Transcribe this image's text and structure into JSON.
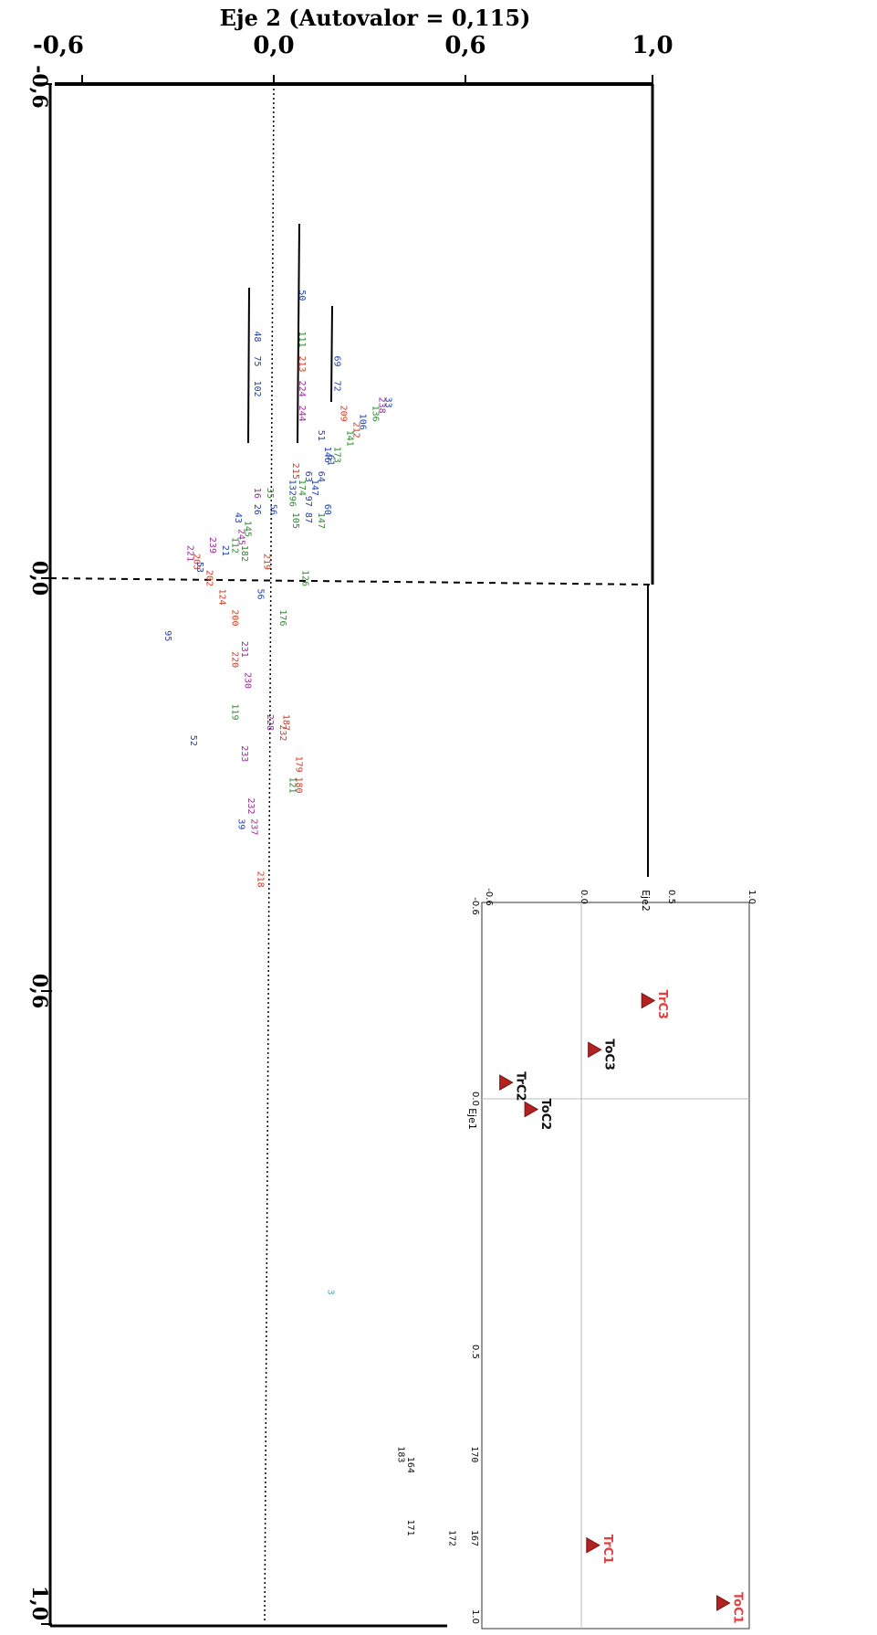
{
  "colors": {
    "blue": "#1f3fa8",
    "green": "#2e8b2e",
    "red": "#d23a23",
    "purple": "#9a2a9a",
    "black": "#111111",
    "cyan": "#2bb3c8",
    "inset_red": "#e04040"
  },
  "chart_data": [
    {
      "type": "scatter",
      "title": "Eje 2 (Autovalor = 0,115)",
      "xlabel": "",
      "ylabel": "",
      "x_ticks": [
        "-0,6",
        "0,0",
        "0,6",
        "1,0"
      ],
      "y_ticks": [
        "-0,6",
        "0,0",
        "0,6",
        "1,0"
      ],
      "xlim": [
        -0.6,
        1.0
      ],
      "ylim": [
        -0.6,
        1.0
      ],
      "grid": false,
      "points": [
        {
          "label": "50",
          "x": 0.08,
          "y": -0.35,
          "color": "blue"
        },
        {
          "label": "111",
          "x": 0.08,
          "y": -0.3,
          "color": "green"
        },
        {
          "label": "213",
          "x": 0.08,
          "y": -0.27,
          "color": "red"
        },
        {
          "label": "224",
          "x": 0.08,
          "y": -0.24,
          "color": "purple"
        },
        {
          "label": "244",
          "x": 0.08,
          "y": -0.21,
          "color": "purple"
        },
        {
          "label": "48",
          "x": -0.06,
          "y": -0.3,
          "color": "blue"
        },
        {
          "label": "75",
          "x": -0.06,
          "y": -0.27,
          "color": "blue"
        },
        {
          "label": "102",
          "x": -0.06,
          "y": -0.24,
          "color": "blue"
        },
        {
          "label": "69",
          "x": 0.19,
          "y": -0.27,
          "color": "blue"
        },
        {
          "label": "72",
          "x": 0.19,
          "y": -0.24,
          "color": "blue"
        },
        {
          "label": "33",
          "x": 0.35,
          "y": -0.22,
          "color": "blue"
        },
        {
          "label": "238",
          "x": 0.33,
          "y": -0.22,
          "color": "purple"
        },
        {
          "label": "136",
          "x": 0.31,
          "y": -0.21,
          "color": "green"
        },
        {
          "label": "106",
          "x": 0.27,
          "y": -0.2,
          "color": "blue"
        },
        {
          "label": "209",
          "x": 0.21,
          "y": -0.21,
          "color": "red"
        },
        {
          "label": "212",
          "x": 0.25,
          "y": -0.19,
          "color": "red"
        },
        {
          "label": "141",
          "x": 0.23,
          "y": -0.18,
          "color": "green"
        },
        {
          "label": "51",
          "x": 0.14,
          "y": -0.18,
          "color": "blue"
        },
        {
          "label": "146",
          "x": 0.16,
          "y": -0.16,
          "color": "blue"
        },
        {
          "label": "173",
          "x": 0.19,
          "y": -0.16,
          "color": "green"
        },
        {
          "label": "61",
          "x": 0.17,
          "y": -0.15,
          "color": "blue"
        },
        {
          "label": "64",
          "x": 0.14,
          "y": -0.13,
          "color": "blue"
        },
        {
          "label": "147",
          "x": 0.12,
          "y": -0.12,
          "color": "blue"
        },
        {
          "label": "215",
          "x": 0.06,
          "y": -0.14,
          "color": "red"
        },
        {
          "label": "174",
          "x": 0.08,
          "y": -0.12,
          "color": "green"
        },
        {
          "label": "63",
          "x": 0.1,
          "y": -0.13,
          "color": "blue"
        },
        {
          "label": "132",
          "x": 0.05,
          "y": -0.12,
          "color": "blue"
        },
        {
          "label": "97",
          "x": 0.1,
          "y": -0.1,
          "color": "blue"
        },
        {
          "label": "96",
          "x": 0.05,
          "y": -0.1,
          "color": "green"
        },
        {
          "label": "87",
          "x": 0.1,
          "y": -0.08,
          "color": "blue"
        },
        {
          "label": "105",
          "x": 0.06,
          "y": -0.08,
          "color": "green"
        },
        {
          "label": "60",
          "x": 0.16,
          "y": -0.09,
          "color": "blue"
        },
        {
          "label": "147",
          "x": 0.14,
          "y": -0.08,
          "color": "green"
        },
        {
          "label": "35",
          "x": -0.02,
          "y": -0.11,
          "color": "green"
        },
        {
          "label": "56",
          "x": -0.01,
          "y": -0.09,
          "color": "blue"
        },
        {
          "label": "16",
          "x": -0.06,
          "y": -0.11,
          "color": "purple"
        },
        {
          "label": "26",
          "x": -0.06,
          "y": -0.09,
          "color": "blue"
        },
        {
          "label": "43",
          "x": -0.12,
          "y": -0.08,
          "color": "blue"
        },
        {
          "label": "145",
          "x": -0.09,
          "y": -0.07,
          "color": "green"
        },
        {
          "label": "245",
          "x": -0.11,
          "y": -0.06,
          "color": "purple"
        },
        {
          "label": "112",
          "x": -0.13,
          "y": -0.05,
          "color": "green"
        },
        {
          "label": "182",
          "x": -0.1,
          "y": -0.04,
          "color": "green"
        },
        {
          "label": "239",
          "x": -0.2,
          "y": -0.05,
          "color": "purple"
        },
        {
          "label": "21",
          "x": -0.16,
          "y": -0.04,
          "color": "blue"
        },
        {
          "label": "221",
          "x": -0.27,
          "y": -0.04,
          "color": "purple"
        },
        {
          "label": "203",
          "x": -0.25,
          "y": -0.03,
          "color": "red"
        },
        {
          "label": "53",
          "x": -0.24,
          "y": -0.02,
          "color": "blue"
        },
        {
          "label": "202",
          "x": -0.21,
          "y": -0.01,
          "color": "red"
        },
        {
          "label": "219",
          "x": -0.03,
          "y": -0.03,
          "color": "red"
        },
        {
          "label": "126",
          "x": 0.09,
          "y": -0.01,
          "color": "green"
        },
        {
          "label": "56",
          "x": -0.05,
          "y": 0.01,
          "color": "blue"
        },
        {
          "label": "124",
          "x": -0.17,
          "y": 0.01,
          "color": "red"
        },
        {
          "label": "200",
          "x": -0.13,
          "y": 0.03,
          "color": "red"
        },
        {
          "label": "176",
          "x": 0.02,
          "y": 0.03,
          "color": "green"
        },
        {
          "label": "95",
          "x": -0.34,
          "y": 0.05,
          "color": "blue"
        },
        {
          "label": "231",
          "x": -0.1,
          "y": 0.06,
          "color": "purple"
        },
        {
          "label": "220",
          "x": -0.13,
          "y": 0.07,
          "color": "red"
        },
        {
          "label": "230",
          "x": -0.09,
          "y": 0.09,
          "color": "purple"
        },
        {
          "label": "119",
          "x": -0.13,
          "y": 0.12,
          "color": "green"
        },
        {
          "label": "52",
          "x": -0.26,
          "y": 0.15,
          "color": "blue"
        },
        {
          "label": "228",
          "x": -0.02,
          "y": 0.13,
          "color": "purple"
        },
        {
          "label": "187",
          "x": 0.03,
          "y": 0.13,
          "color": "red"
        },
        {
          "label": "232",
          "x": 0.02,
          "y": 0.14,
          "color": "red"
        },
        {
          "label": "233",
          "x": -0.1,
          "y": 0.16,
          "color": "purple"
        },
        {
          "label": "179",
          "x": 0.07,
          "y": 0.17,
          "color": "red"
        },
        {
          "label": "180",
          "x": 0.07,
          "y": 0.19,
          "color": "red"
        },
        {
          "label": "121",
          "x": 0.05,
          "y": 0.19,
          "color": "green"
        },
        {
          "label": "232",
          "x": -0.08,
          "y": 0.21,
          "color": "purple"
        },
        {
          "label": "237",
          "x": -0.07,
          "y": 0.23,
          "color": "purple"
        },
        {
          "label": "39",
          "x": -0.11,
          "y": 0.23,
          "color": "blue"
        },
        {
          "label": "218",
          "x": -0.05,
          "y": 0.28,
          "color": "red"
        },
        {
          "label": "3",
          "x": 0.17,
          "y": 0.68,
          "color": "cyan"
        },
        {
          "label": "170",
          "x": 0.62,
          "y": 0.83,
          "color": "black"
        },
        {
          "label": "183",
          "x": 0.39,
          "y": 0.83,
          "color": "black"
        },
        {
          "label": "164",
          "x": 0.42,
          "y": 0.84,
          "color": "black"
        },
        {
          "label": "171",
          "x": 0.42,
          "y": 0.9,
          "color": "black"
        },
        {
          "label": "172",
          "x": 0.55,
          "y": 0.91,
          "color": "black"
        },
        {
          "label": "167",
          "x": 0.62,
          "y": 0.91,
          "color": "black"
        }
      ]
    },
    {
      "type": "scatter",
      "title": "",
      "xlabel": "Eje2",
      "ylabel": "Eje1",
      "x_ticks": [
        "-0.6",
        "0.0",
        "0.5",
        "1.0"
      ],
      "y_ticks": [
        "-0.6",
        "0.0",
        "0.5",
        "1.0"
      ],
      "xlim": [
        -0.6,
        1.0
      ],
      "ylim": [
        -0.6,
        1.0
      ],
      "grid": false,
      "points": [
        {
          "label": "TrC3",
          "x": 0.4,
          "y": -0.3,
          "color": "inset_red"
        },
        {
          "label": "ToC3",
          "x": 0.08,
          "y": -0.15,
          "color": "black"
        },
        {
          "label": "TrC2",
          "x": -0.45,
          "y": -0.05,
          "color": "black"
        },
        {
          "label": "ToC2",
          "x": -0.3,
          "y": 0.02,
          "color": "black"
        },
        {
          "label": "TrC1",
          "x": 0.07,
          "y": 0.85,
          "color": "inset_red"
        },
        {
          "label": "ToC1",
          "x": 0.85,
          "y": 0.96,
          "color": "inset_red"
        }
      ]
    }
  ]
}
